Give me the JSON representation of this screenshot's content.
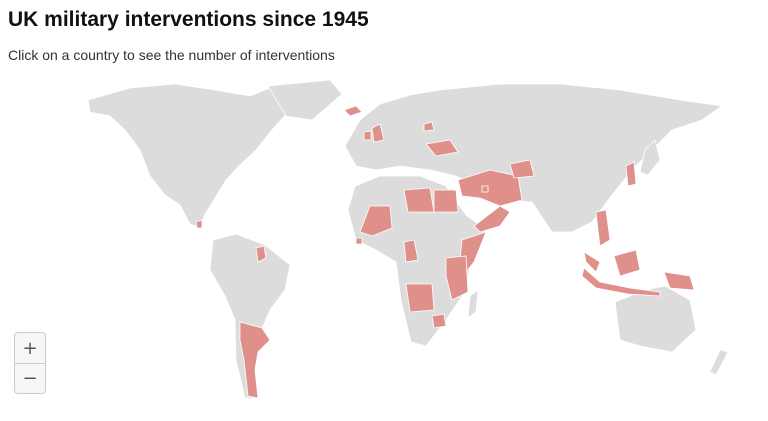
{
  "header": {
    "title": "UK military interventions since 1945",
    "subtitle": "Click on a country to see the number of interventions"
  },
  "zoom": {
    "in": "+",
    "out": "−"
  }
}
